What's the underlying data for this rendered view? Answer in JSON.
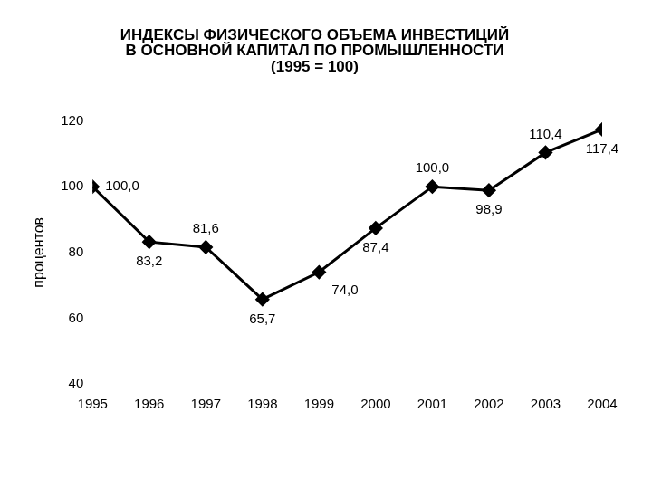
{
  "chart_data": {
    "type": "line",
    "title": [
      "ИНДЕКСЫ ФИЗИЧЕСКОГО ОБЪЕМА ИНВЕСТИЦИЙ",
      "В ОСНОВНОЙ КАПИТАЛ ПО ПРОМЫШЛЕННОСТИ",
      "(1995 = 100)"
    ],
    "y_label": "процентов",
    "categories": [
      "1995",
      "1996",
      "1997",
      "1998",
      "1999",
      "2000",
      "2001",
      "2002",
      "2003",
      "2004"
    ],
    "values": [
      100.0,
      83.2,
      81.6,
      65.7,
      74.0,
      87.4,
      100.0,
      98.9,
      110.4,
      117.4
    ],
    "value_labels": [
      "100,0",
      "83,2",
      "81,6",
      "65,7",
      "74,0",
      "87,4",
      "100,0",
      "98,9",
      "110,4",
      "117,4"
    ],
    "color": "#000000",
    "marker": "diamond",
    "line_style": "solid",
    "data_labels": true,
    "grid": false,
    "ylim": [
      40,
      120
    ],
    "yticks": [
      40,
      60,
      80,
      100,
      120
    ]
  }
}
